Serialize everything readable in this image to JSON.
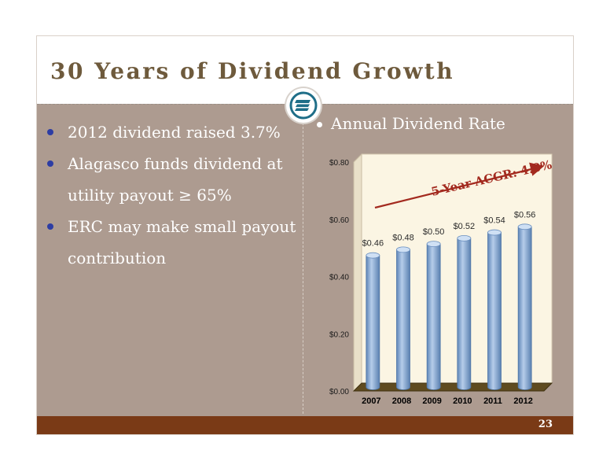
{
  "slide": {
    "title": "30 Years of Dividend Growth",
    "page_number": "23"
  },
  "bullets": [
    "2012 dividend raised 3.7%",
    "Alagasco funds dividend at utility payout ≥ 65%",
    "ERC may make small payout contribution"
  ],
  "chart_heading": "Annual Dividend Rate",
  "colors": {
    "body_background": "#ad9b90",
    "title_text": "#6e5a3c",
    "footer": "#7a3a16",
    "bar": "#8fb0d6",
    "plot_background": "#fbf5e3",
    "arrow": "#a32a1f",
    "annotation_text": "#a32a1f"
  },
  "chart_data": {
    "type": "bar",
    "title": "Annual Dividend Rate",
    "categories": [
      "2007",
      "2008",
      "2009",
      "2010",
      "2011",
      "2012"
    ],
    "values": [
      0.46,
      0.48,
      0.5,
      0.52,
      0.54,
      0.56
    ],
    "data_labels": [
      "$0.46",
      "$0.48",
      "$0.50",
      "$0.52",
      "$0.54",
      "$0.56"
    ],
    "yticks": [
      "$0.00",
      "$0.20",
      "$0.40",
      "$0.60",
      "$0.80"
    ],
    "ytick_values": [
      0,
      0.2,
      0.4,
      0.6,
      0.8
    ],
    "ylim": [
      0,
      0.8
    ],
    "annotation": "5-Year ACGR: 4.0%",
    "style": "3d-cylinder",
    "grid": false,
    "legend": "none"
  }
}
